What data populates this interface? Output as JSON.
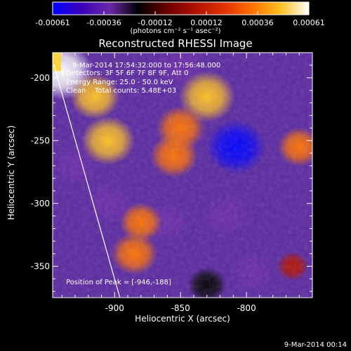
{
  "colorbar": {
    "tick_labels": [
      "-0.00061",
      "-0.00036",
      "-0.00012",
      "0.00012",
      "0.00036",
      "0.00061"
    ],
    "units": "(photons cm⁻² s⁻¹ asec⁻²)",
    "colors": [
      "#0000ff",
      "#3a00b8",
      "#6a2aa8",
      "#000000",
      "#6a0000",
      "#b01000",
      "#e03000",
      "#ff7000",
      "#ffc020",
      "#ffffff"
    ]
  },
  "annotations": {
    "time": "8-Mar-2014 17:54:32.000 to 17:56:48.000",
    "detectors": "Detectors: 3F 5F 6F 7F 8F 9F, Att 0",
    "energy": "Energy Range: 25.0 - 50.0 keV",
    "clean": "Clean    Total counts: 5.48E+03",
    "peak": "Position of Peak = [-946,-188]"
  },
  "footer": "9-Mar-2014 00:14",
  "chart_data": {
    "type": "heatmap",
    "title": "Reconstructed RHESSI Image",
    "xlabel": "Heliocentric X (arcsec)",
    "ylabel": "Heliocentric Y (arcsec)",
    "xlim": [
      -947,
      -750
    ],
    "ylim": [
      -375,
      -180
    ],
    "x_ticks": [
      -900,
      -850,
      -800
    ],
    "y_ticks": [
      -200,
      -250,
      -300,
      -350
    ],
    "x_tick_labels": [
      "-900",
      "-850",
      "-800"
    ],
    "y_tick_labels": [
      "-200",
      "-250",
      "-300",
      "-350"
    ],
    "colorbar_range": [
      -0.00061,
      0.00061
    ],
    "peak": [
      -946,
      -188
    ],
    "limb_line": [
      [
        -946,
        -190
      ],
      [
        -896,
        -375
      ]
    ],
    "bright_sources": [
      {
        "x": -940,
        "y": -195,
        "intensity": 0.00061
      },
      {
        "x": -915,
        "y": -215,
        "intensity": 0.00042
      },
      {
        "x": -905,
        "y": -250,
        "intensity": 0.00048
      },
      {
        "x": -830,
        "y": -215,
        "intensity": 0.00052
      },
      {
        "x": -850,
        "y": -240,
        "intensity": 0.0004
      },
      {
        "x": -855,
        "y": -262,
        "intensity": 0.00038
      },
      {
        "x": -880,
        "y": -315,
        "intensity": 0.0003
      },
      {
        "x": -885,
        "y": -340,
        "intensity": 0.00036
      },
      {
        "x": -760,
        "y": -255,
        "intensity": 0.0003
      },
      {
        "x": -765,
        "y": -350,
        "intensity": 0.00012
      }
    ],
    "dark_sources": [
      {
        "x": -850,
        "y": -190,
        "intensity": -0.0004
      },
      {
        "x": -808,
        "y": -255,
        "intensity": -0.00058
      },
      {
        "x": -815,
        "y": -310,
        "intensity": -0.00036
      },
      {
        "x": -905,
        "y": -300,
        "intensity": -0.00036
      },
      {
        "x": -860,
        "y": -315,
        "intensity": -0.0003
      },
      {
        "x": -795,
        "y": -355,
        "intensity": -0.0003
      },
      {
        "x": -930,
        "y": -270,
        "intensity": -0.0003
      },
      {
        "x": -830,
        "y": -365,
        "intensity": -0.00024
      }
    ]
  }
}
